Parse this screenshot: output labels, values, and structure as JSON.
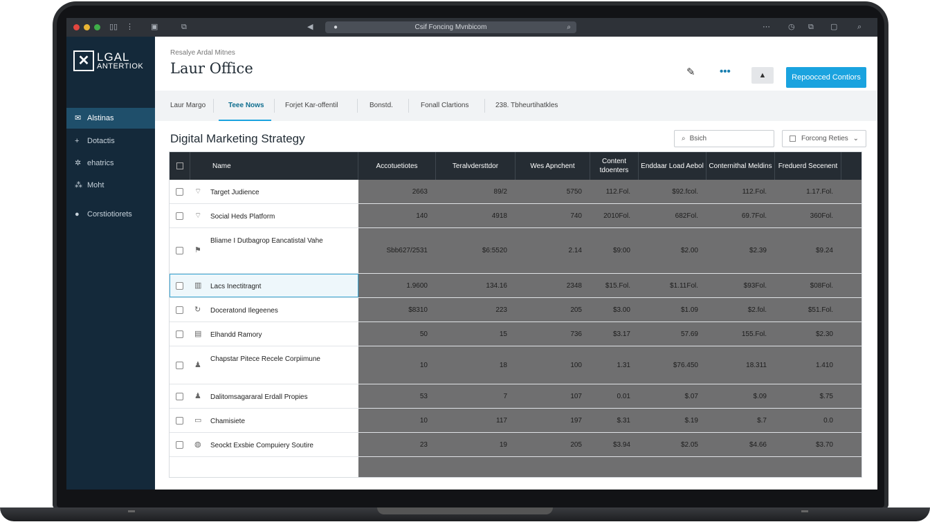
{
  "browser": {
    "url": "Csif Foncing Mvnbicom"
  },
  "sidebar": {
    "logo_line1": "LGAL",
    "logo_line2": "ANTERTIOK",
    "items": [
      {
        "label": "Alstinas",
        "icon": "mail-icon"
      },
      {
        "label": "Dotactis",
        "icon": "plus-icon"
      },
      {
        "label": "ehatrics",
        "icon": "settings-icon"
      },
      {
        "label": "Moht",
        "icon": "grid-icon"
      },
      {
        "label": "Corstiotiorets",
        "icon": "circle-icon"
      }
    ]
  },
  "header": {
    "subtitle": "Resalye Ardal Mitnes",
    "title": "Laur Office",
    "primary_button": "Repoocced Contiors"
  },
  "tabs": [
    {
      "label": "Laur Margo"
    },
    {
      "label": "Teee Nows"
    },
    {
      "label": "Forjet Kar-offentil"
    },
    {
      "label": "Bonstd."
    },
    {
      "label": "Fonall Clartions"
    },
    {
      "label": "238. Tbheurtihatkles"
    }
  ],
  "section": {
    "title": "Digital Marketing Strategy",
    "search_placeholder": "Bsich",
    "filter_label": "Forcong Reties"
  },
  "table": {
    "columns": [
      "Name",
      "Accotuetiotes",
      "Teralvdersttdor",
      "Wes Apnchent",
      "Content tdoenters",
      "Enddaar Load Aebol",
      "Conternithal Meldins",
      "Freduerd Secenent"
    ],
    "rows": [
      {
        "name": "Target Judience",
        "icon": "wifi-icon",
        "values": [
          "2663",
          "89/2",
          "5750",
          "112.Fol.",
          "$92.fcol.",
          "112.Fol.",
          "1.17.Fol."
        ]
      },
      {
        "name": "Social Heds Platform",
        "icon": "wifi-icon",
        "values": [
          "140",
          "4918",
          "740",
          "2010Fol.",
          "682Fol.",
          "69.7Fol.",
          "360Fol."
        ]
      },
      {
        "name": "Bliame I Dutbagrop Eancatistal Vahe",
        "icon": "tag-icon",
        "values": [
          "Sbb627/2531",
          "$6:5520",
          "2.14",
          "$9:00",
          "$2.00",
          "$2.39",
          "$9.24"
        ]
      },
      {
        "name": "Lacs Inectitragnt",
        "icon": "building-icon",
        "values": [
          "1.9600",
          "134.16",
          "2348",
          "$15.Fol.",
          "$1.11Fol.",
          "$93Fol.",
          "$08Fol."
        ]
      },
      {
        "name": "Doceratond Ilegeenes",
        "icon": "refresh-icon",
        "values": [
          "$8310",
          "223",
          "205",
          "$3.00",
          "$1.09",
          "$2.fol.",
          "$51.Fol."
        ]
      },
      {
        "name": "Elhandd Ramory",
        "icon": "image-icon",
        "values": [
          "50",
          "15",
          "736",
          "$3.17",
          "57.69",
          "155.Fol.",
          "$2.30"
        ]
      },
      {
        "name": "Chapstar Pitece Recele Corpiimune",
        "icon": "person-icon",
        "values": [
          "10",
          "18",
          "100",
          "1.31",
          "$76.450",
          "18.311",
          "1.410"
        ]
      },
      {
        "name": "Dalitomsagararal Erdall Propies",
        "icon": "person-icon",
        "values": [
          "53",
          "7",
          "107",
          "0.01",
          "$.07",
          "$.09",
          "$.75"
        ]
      },
      {
        "name": "Chamisiete",
        "icon": "card-icon",
        "values": [
          "10",
          "117",
          "197",
          "$.31",
          "$.19",
          "$.7",
          "0.0"
        ]
      },
      {
        "name": "Seockt Exsbie Compuiery Soutire",
        "icon": "globe-icon",
        "values": [
          "23",
          "19",
          "205",
          "$3.94",
          "$2.05",
          "$4.66",
          "$3.70"
        ]
      }
    ]
  },
  "colors": {
    "sidebar_bg": "#14293a",
    "sidebar_active": "#1f4f6b",
    "accent": "#1aa3df",
    "table_header": "#252c33"
  }
}
